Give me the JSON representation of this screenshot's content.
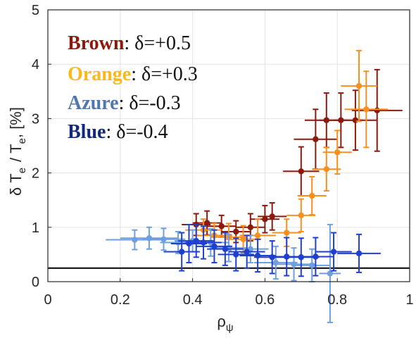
{
  "chart_data": {
    "type": "scatter",
    "title": "",
    "xlabel_symbol": "ρ",
    "xlabel_sub": "ψ",
    "ylabel": {
      "d": "δ",
      "t1": "T",
      "s1": "e",
      "slash": "/",
      "t2": "T",
      "s2": "e",
      "rest": ", [%]"
    },
    "xlim": [
      0,
      1
    ],
    "ylim": [
      0,
      5
    ],
    "xticks": [
      0,
      0.2,
      0.4,
      0.6,
      0.8,
      1
    ],
    "xtick_labels": [
      "0",
      "0.2",
      "0.4",
      "0.6",
      "0.8",
      "1"
    ],
    "yticks": [
      0,
      1,
      2,
      3,
      4,
      5
    ],
    "ytick_labels": [
      "0",
      "1",
      "2",
      "3",
      "4",
      "5"
    ],
    "grid": true,
    "legend_placement": "top-left",
    "reference_line": {
      "y": 0.25,
      "color": "#000000"
    },
    "series": [
      {
        "name": "Brown",
        "desc": ": δ=+0.5",
        "color": "#8b1a0e",
        "points": [
          {
            "x": 0.41,
            "y": 1.05,
            "xerr": 0.04,
            "yerr": 0.2
          },
          {
            "x": 0.44,
            "y": 1.08,
            "xerr": 0.04,
            "yerr": 0.22
          },
          {
            "x": 0.48,
            "y": 1.02,
            "xerr": 0.04,
            "yerr": 0.2
          },
          {
            "x": 0.52,
            "y": 0.92,
            "xerr": 0.04,
            "yerr": 0.2
          },
          {
            "x": 0.56,
            "y": 1.0,
            "xerr": 0.04,
            "yerr": 0.25
          },
          {
            "x": 0.6,
            "y": 1.15,
            "xerr": 0.04,
            "yerr": 0.25
          },
          {
            "x": 0.62,
            "y": 1.2,
            "xerr": 0.04,
            "yerr": 0.25
          },
          {
            "x": 0.7,
            "y": 2.03,
            "xerr": 0.05,
            "yerr": 0.45
          },
          {
            "x": 0.74,
            "y": 2.62,
            "xerr": 0.06,
            "yerr": 0.55
          },
          {
            "x": 0.77,
            "y": 2.97,
            "xerr": 0.06,
            "yerr": 0.5
          },
          {
            "x": 0.81,
            "y": 2.97,
            "xerr": 0.06,
            "yerr": 0.5
          },
          {
            "x": 0.85,
            "y": 2.97,
            "xerr": 0.06,
            "yerr": 0.55
          },
          {
            "x": 0.91,
            "y": 3.15,
            "xerr": 0.07,
            "yerr": 0.75
          }
        ]
      },
      {
        "name": "Orange",
        "desc": ": δ=+0.3",
        "color": "#f7901e",
        "points": [
          {
            "x": 0.43,
            "y": 0.95,
            "xerr": 0.05,
            "yerr": 0.2
          },
          {
            "x": 0.46,
            "y": 0.85,
            "xerr": 0.05,
            "yerr": 0.22
          },
          {
            "x": 0.5,
            "y": 0.82,
            "xerr": 0.05,
            "yerr": 0.25
          },
          {
            "x": 0.54,
            "y": 0.78,
            "xerr": 0.05,
            "yerr": 0.25
          },
          {
            "x": 0.58,
            "y": 0.85,
            "xerr": 0.05,
            "yerr": 0.3
          },
          {
            "x": 0.66,
            "y": 0.9,
            "xerr": 0.04,
            "yerr": 0.25
          },
          {
            "x": 0.7,
            "y": 1.22,
            "xerr": 0.04,
            "yerr": 0.3
          },
          {
            "x": 0.73,
            "y": 1.58,
            "xerr": 0.04,
            "yerr": 0.35
          },
          {
            "x": 0.77,
            "y": 2.07,
            "xerr": 0.04,
            "yerr": 0.4
          },
          {
            "x": 0.8,
            "y": 2.38,
            "xerr": 0.04,
            "yerr": 0.4
          },
          {
            "x": 0.86,
            "y": 3.6,
            "xerr": 0.05,
            "yerr": 0.65
          },
          {
            "x": 0.88,
            "y": 3.17,
            "xerr": 0.06,
            "yerr": 0.7
          }
        ]
      },
      {
        "name": "Azure",
        "desc": ": δ=-0.3",
        "color": "#6e9fe0",
        "points": [
          {
            "x": 0.24,
            "y": 0.77,
            "xerr": 0.08,
            "yerr": 0.18
          },
          {
            "x": 0.28,
            "y": 0.8,
            "xerr": 0.08,
            "yerr": 0.2
          },
          {
            "x": 0.32,
            "y": 0.78,
            "xerr": 0.06,
            "yerr": 0.2
          },
          {
            "x": 0.36,
            "y": 0.72,
            "xerr": 0.05,
            "yerr": 0.2
          },
          {
            "x": 0.4,
            "y": 0.75,
            "xerr": 0.05,
            "yerr": 0.2
          },
          {
            "x": 0.45,
            "y": 0.72,
            "xerr": 0.05,
            "yerr": 0.25
          },
          {
            "x": 0.5,
            "y": 0.62,
            "xerr": 0.05,
            "yerr": 0.25
          },
          {
            "x": 0.56,
            "y": 0.6,
            "xerr": 0.05,
            "yerr": 0.25
          },
          {
            "x": 0.63,
            "y": 0.35,
            "xerr": 0.06,
            "yerr": 0.3
          },
          {
            "x": 0.68,
            "y": 0.32,
            "xerr": 0.06,
            "yerr": 0.3
          },
          {
            "x": 0.73,
            "y": 0.3,
            "xerr": 0.05,
            "yerr": 0.3
          },
          {
            "x": 0.78,
            "y": 0.15,
            "xerr": 0.03,
            "yerr": 0.9
          }
        ]
      },
      {
        "name": "Blue",
        "desc": ": δ=-0.4",
        "color": "#1f3fcf",
        "points": [
          {
            "x": 0.37,
            "y": 0.55,
            "xerr": 0.05,
            "yerr": 0.35
          },
          {
            "x": 0.39,
            "y": 0.7,
            "xerr": 0.05,
            "yerr": 0.35
          },
          {
            "x": 0.41,
            "y": 0.75,
            "xerr": 0.05,
            "yerr": 0.3
          },
          {
            "x": 0.43,
            "y": 0.72,
            "xerr": 0.05,
            "yerr": 0.3
          },
          {
            "x": 0.46,
            "y": 0.65,
            "xerr": 0.05,
            "yerr": 0.3
          },
          {
            "x": 0.49,
            "y": 0.6,
            "xerr": 0.05,
            "yerr": 0.3
          },
          {
            "x": 0.52,
            "y": 0.5,
            "xerr": 0.05,
            "yerr": 0.3
          },
          {
            "x": 0.55,
            "y": 0.55,
            "xerr": 0.05,
            "yerr": 0.3
          },
          {
            "x": 0.58,
            "y": 0.48,
            "xerr": 0.05,
            "yerr": 0.3
          },
          {
            "x": 0.62,
            "y": 0.45,
            "xerr": 0.05,
            "yerr": 0.3
          },
          {
            "x": 0.66,
            "y": 0.46,
            "xerr": 0.05,
            "yerr": 0.35
          },
          {
            "x": 0.7,
            "y": 0.45,
            "xerr": 0.05,
            "yerr": 0.35
          },
          {
            "x": 0.74,
            "y": 0.46,
            "xerr": 0.05,
            "yerr": 0.35
          },
          {
            "x": 0.79,
            "y": 0.55,
            "xerr": 0.05,
            "yerr": 0.35
          },
          {
            "x": 0.86,
            "y": 0.52,
            "xerr": 0.06,
            "yerr": 0.35
          }
        ]
      }
    ]
  }
}
